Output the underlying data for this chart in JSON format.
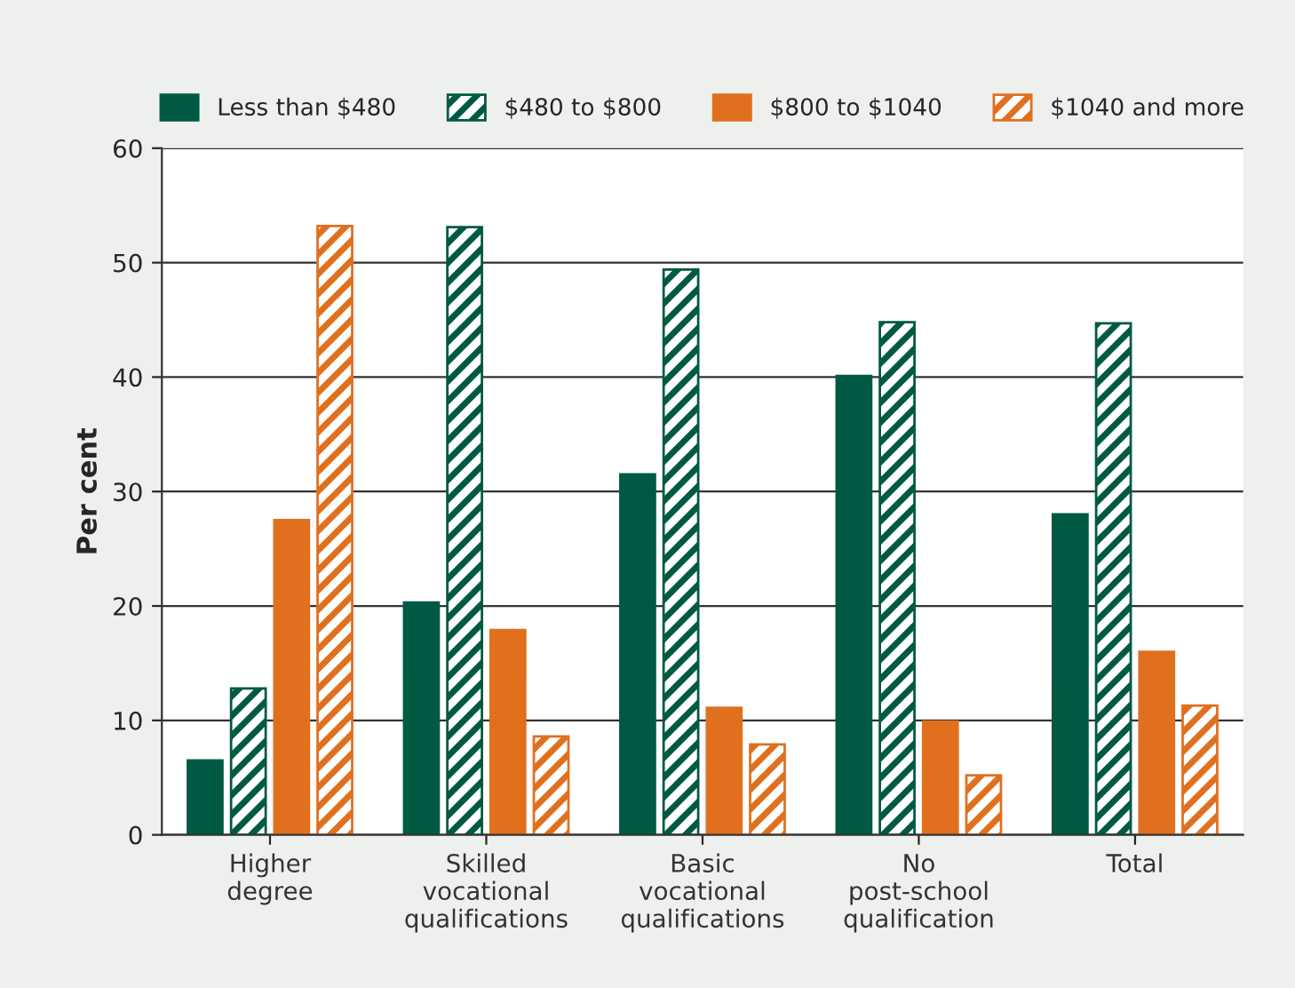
{
  "chart_data": {
    "type": "bar",
    "ylabel": "Per cent",
    "categories": [
      "Higher\ndegree",
      "Skilled\nvocational\nqualifications",
      "Basic\nvocational\nqualifications",
      "No\npost-school\nqualification",
      "Total"
    ],
    "series": [
      {
        "name": "Less than $480",
        "color": "#005a43",
        "values": [
          6.5,
          20.3,
          31.5,
          40.1,
          28.0
        ]
      },
      {
        "name": "$480 to $800",
        "color": "#005a43",
        "values": [
          12.8,
          53.1,
          49.4,
          44.8,
          44.7
        ]
      },
      {
        "name": "$800 to $1040",
        "color": "#e0701e",
        "values": [
          27.5,
          17.9,
          11.1,
          9.9,
          16.0
        ]
      },
      {
        "name": "$1040 and more",
        "color": "#e0701e",
        "values": [
          53.2,
          8.6,
          7.9,
          5.2,
          11.3
        ]
      }
    ],
    "ylim": [
      0,
      60
    ],
    "yticks": [
      0,
      10,
      20,
      30,
      40,
      50,
      60
    ],
    "grid": "y",
    "legend": "top"
  }
}
